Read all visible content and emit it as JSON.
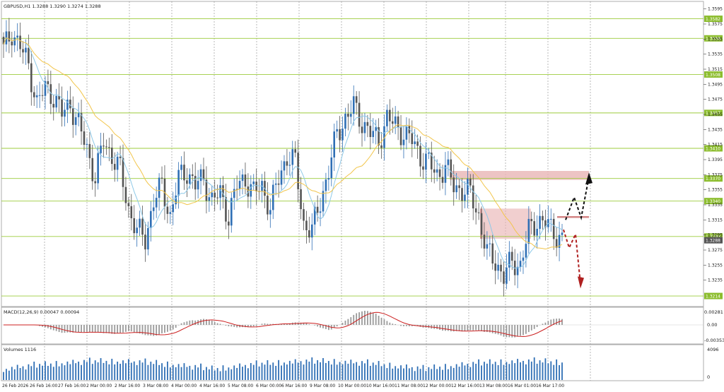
{
  "window": {
    "symbol_info": "GBPUSD,H1  1.3288 1.3290 1.3274 1.3288"
  },
  "colors": {
    "background": "#ffffff",
    "grid": "#9a9a9a",
    "bull_candle": "#2f6fb5",
    "bear_candle": "#555555",
    "ma_fast": "#8ec9e8",
    "ma_slow": "#f2c54a",
    "level_line": "#9ccc3c",
    "level_label_bg": "#8cbd2e",
    "zone_fill": "#e9b5b5",
    "macd_hist": "#9a9a9a",
    "macd_signal": "#cc2020",
    "volume_bar": "#2f6fb5",
    "current_price_bg": "#555555",
    "arrow_up": "#111111",
    "arrow_down": "#b02020"
  },
  "price_axis": {
    "ticks": [
      "1.3595",
      "1.3575",
      "1.3555",
      "1.3535",
      "1.3515",
      "1.3495",
      "1.3475",
      "1.3455",
      "1.3435",
      "1.3415",
      "1.3395",
      "1.3375",
      "1.3355",
      "1.3335",
      "1.3315",
      "1.3295",
      "1.3275",
      "1.3255",
      "1.3235"
    ],
    "current_price": "1.3288"
  },
  "time_axis": {
    "labels": [
      "26 Feb 2026",
      "26 Feb 16:00",
      "27 Feb 16:00",
      "2 Mar 00:00",
      "2 Mar 16:00",
      "3 Mar 08:00",
      "4 Mar 00:00",
      "4 Mar 16:00",
      "5 Mar 08:00",
      "6 Mar 00:00",
      "6 Mar 16:00",
      "9 Mar 08:00",
      "10 Mar 00:00",
      "10 Mar 16:00",
      "11 Mar 08:00",
      "12 Mar 00:00",
      "12 Mar 16:00",
      "13 Mar 08:00",
      "16 Mar 01:00",
      "16 Mar 17:00"
    ]
  },
  "levels": [
    "1.3582",
    "1.3556",
    "1.3508",
    "1.3457",
    "1.3410",
    "1.3370",
    "1.3340",
    "1.3293",
    "1.3214"
  ],
  "macd": {
    "label": "MACD(12,26,9) 0.00047 0.00094",
    "ticks": [
      "0.00281",
      "0.00",
      "-0.00353"
    ]
  },
  "volumes": {
    "label": "Volumes 1116",
    "ticks": [
      "4096",
      "0"
    ]
  },
  "chart_data": {
    "type": "candlestick",
    "title": "GBPUSD,H1",
    "ylim": [
      1.32,
      1.3605
    ],
    "ohlc_last": {
      "open": 1.3288,
      "high": 1.329,
      "low": 1.3274,
      "close": 1.3288
    },
    "close_path": [
      [
        0,
        1.354
      ],
      [
        3,
        1.3565
      ],
      [
        6,
        1.3545
      ],
      [
        9,
        1.352
      ],
      [
        12,
        1.347
      ],
      [
        15,
        1.349
      ],
      [
        18,
        1.348
      ],
      [
        21,
        1.3455
      ],
      [
        24,
        1.347
      ],
      [
        27,
        1.344
      ],
      [
        30,
        1.341
      ],
      [
        33,
        1.337
      ],
      [
        36,
        1.342
      ],
      [
        39,
        1.34
      ],
      [
        42,
        1.338
      ],
      [
        45,
        1.333
      ],
      [
        48,
        1.33
      ],
      [
        51,
        1.329
      ],
      [
        54,
        1.334
      ],
      [
        57,
        1.336
      ],
      [
        60,
        1.332
      ],
      [
        63,
        1.337
      ],
      [
        66,
        1.338
      ],
      [
        69,
        1.336
      ],
      [
        72,
        1.337
      ],
      [
        75,
        1.334
      ],
      [
        78,
        1.335
      ],
      [
        81,
        1.332
      ],
      [
        84,
        1.336
      ],
      [
        87,
        1.337
      ],
      [
        90,
        1.335
      ],
      [
        93,
        1.336
      ],
      [
        96,
        1.333
      ],
      [
        99,
        1.337
      ],
      [
        102,
        1.34
      ],
      [
        105,
        1.339
      ],
      [
        108,
        1.331
      ],
      [
        111,
        1.33
      ],
      [
        114,
        1.334
      ],
      [
        117,
        1.338
      ],
      [
        120,
        1.343
      ],
      [
        123,
        1.345
      ],
      [
        126,
        1.3465
      ],
      [
        129,
        1.3445
      ],
      [
        132,
        1.343
      ],
      [
        135,
        1.342
      ],
      [
        138,
        1.345
      ],
      [
        141,
        1.344
      ],
      [
        144,
        1.343
      ],
      [
        147,
        1.342
      ],
      [
        150,
        1.34
      ],
      [
        153,
        1.339
      ],
      [
        156,
        1.3375
      ],
      [
        159,
        1.3385
      ],
      [
        162,
        1.336
      ],
      [
        165,
        1.3355
      ],
      [
        168,
        1.335
      ],
      [
        171,
        1.332
      ],
      [
        174,
        1.327
      ],
      [
        177,
        1.326
      ],
      [
        180,
        1.324
      ],
      [
        183,
        1.326
      ],
      [
        186,
        1.3255
      ],
      [
        189,
        1.33
      ],
      [
        192,
        1.3315
      ],
      [
        195,
        1.331
      ],
      [
        198,
        1.33
      ],
      [
        201,
        1.3288
      ]
    ],
    "volume_profile": [
      0.3,
      0.5,
      0.35,
      0.6,
      0.4,
      0.7,
      0.45,
      0.55,
      0.3,
      0.65,
      0.5,
      0.8,
      0.35,
      0.6,
      0.45,
      0.75,
      0.4,
      0.55,
      0.3,
      0.7
    ]
  }
}
